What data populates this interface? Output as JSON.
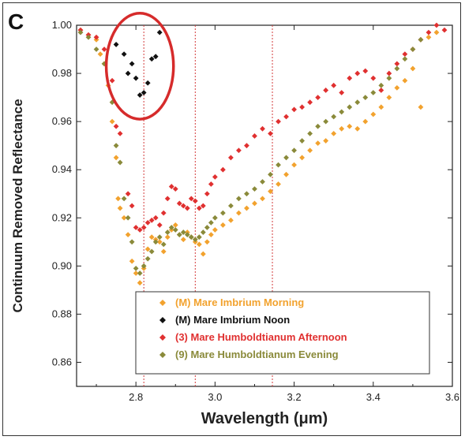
{
  "panel_label": "C",
  "chart_data": {
    "type": "scatter",
    "xlabel": "Wavelength (μm)",
    "ylabel": "Continuum Removed Reflectance",
    "xlim": [
      2.65,
      3.6
    ],
    "ylim": [
      0.85,
      1.0
    ],
    "xticks": [
      {
        "value": 2.8,
        "label": "2.8"
      },
      {
        "value": 3.0,
        "label": "3.0"
      },
      {
        "value": 3.2,
        "label": "3.2"
      },
      {
        "value": 3.4,
        "label": "3.4"
      },
      {
        "value": 3.6,
        "label": "3.6"
      }
    ],
    "yticks": [
      {
        "value": 0.86,
        "label": "0.86"
      },
      {
        "value": 0.88,
        "label": "0.88"
      },
      {
        "value": 0.9,
        "label": "0.90"
      },
      {
        "value": 0.92,
        "label": "0.92"
      },
      {
        "value": 0.94,
        "label": "0.94"
      },
      {
        "value": 0.96,
        "label": "0.96"
      },
      {
        "value": 0.98,
        "label": "0.98"
      },
      {
        "value": 1.0,
        "label": "1.00"
      }
    ],
    "reference_lines_x": [
      2.82,
      2.95,
      3.145
    ],
    "reference_line_color": "#d33b3b",
    "highlight_ellipse": {
      "x_center": 2.81,
      "y_center": 0.983,
      "x_radius": 0.085,
      "y_radius": 0.022,
      "color": "#d62b2b"
    },
    "legend_position": "bottom-center",
    "series": [
      {
        "name": "(M) Mare Imbrium Morning",
        "color": "#f2a22e",
        "x": [
          2.66,
          2.68,
          2.7,
          2.71,
          2.72,
          2.73,
          2.74,
          2.75,
          2.755,
          2.76,
          2.77,
          2.78,
          2.79,
          2.8,
          2.81,
          2.82,
          2.83,
          2.84,
          2.85,
          2.86,
          2.87,
          2.88,
          2.89,
          2.9,
          2.91,
          2.92,
          2.93,
          2.94,
          2.95,
          2.96,
          2.97,
          2.98,
          2.99,
          3.0,
          3.02,
          3.04,
          3.06,
          3.08,
          3.1,
          3.12,
          3.14,
          3.16,
          3.18,
          3.2,
          3.22,
          3.24,
          3.26,
          3.28,
          3.3,
          3.32,
          3.34,
          3.36,
          3.38,
          3.4,
          3.42,
          3.44,
          3.46,
          3.48,
          3.5,
          3.52,
          3.54,
          3.56
        ],
        "y": [
          0.998,
          0.996,
          0.994,
          0.988,
          0.984,
          0.975,
          0.96,
          0.945,
          0.928,
          0.924,
          0.92,
          0.913,
          0.902,
          0.897,
          0.893,
          0.899,
          0.907,
          0.912,
          0.911,
          0.91,
          0.906,
          0.912,
          0.915,
          0.917,
          0.913,
          0.911,
          0.914,
          0.912,
          0.91,
          0.909,
          0.905,
          0.91,
          0.913,
          0.915,
          0.917,
          0.919,
          0.922,
          0.924,
          0.926,
          0.928,
          0.931,
          0.934,
          0.938,
          0.942,
          0.945,
          0.948,
          0.951,
          0.952,
          0.955,
          0.957,
          0.958,
          0.957,
          0.96,
          0.963,
          0.966,
          0.97,
          0.974,
          0.977,
          0.982,
          0.966,
          0.995,
          0.997
        ]
      },
      {
        "name": "(M) Mare Imbrium Noon",
        "color": "#111111",
        "x": [
          2.75,
          2.77,
          2.78,
          2.79,
          2.8,
          2.81,
          2.82,
          2.83,
          2.84,
          2.85,
          2.86
        ],
        "y": [
          0.992,
          0.988,
          0.98,
          0.984,
          0.978,
          0.971,
          0.972,
          0.976,
          0.986,
          0.987,
          0.997
        ]
      },
      {
        "name": "(3) Mare Humboldtianum Afternoon",
        "color": "#e03030",
        "x": [
          2.66,
          2.68,
          2.7,
          2.72,
          2.74,
          2.75,
          2.76,
          2.78,
          2.79,
          2.8,
          2.81,
          2.82,
          2.83,
          2.84,
          2.85,
          2.86,
          2.87,
          2.88,
          2.89,
          2.9,
          2.91,
          2.92,
          2.93,
          2.94,
          2.95,
          2.96,
          2.97,
          2.98,
          2.99,
          3.0,
          3.02,
          3.04,
          3.06,
          3.08,
          3.1,
          3.12,
          3.14,
          3.16,
          3.18,
          3.2,
          3.22,
          3.24,
          3.26,
          3.28,
          3.3,
          3.32,
          3.34,
          3.36,
          3.38,
          3.4,
          3.42,
          3.44,
          3.46,
          3.48,
          3.5,
          3.52,
          3.54,
          3.56,
          3.58
        ],
        "y": [
          0.998,
          0.996,
          0.995,
          0.99,
          0.977,
          0.958,
          0.955,
          0.93,
          0.925,
          0.916,
          0.915,
          0.916,
          0.918,
          0.919,
          0.92,
          0.917,
          0.922,
          0.928,
          0.933,
          0.932,
          0.926,
          0.925,
          0.924,
          0.928,
          0.927,
          0.924,
          0.925,
          0.93,
          0.934,
          0.937,
          0.94,
          0.945,
          0.948,
          0.95,
          0.954,
          0.957,
          0.955,
          0.96,
          0.962,
          0.965,
          0.966,
          0.968,
          0.97,
          0.973,
          0.975,
          0.972,
          0.978,
          0.98,
          0.981,
          0.978,
          0.973,
          0.98,
          0.984,
          0.988,
          0.99,
          0.994,
          0.997,
          1.0,
          0.998
        ]
      },
      {
        "name": "(9) Mare Humboldtianum Evening",
        "color": "#8a8a3a",
        "x": [
          2.66,
          2.68,
          2.7,
          2.72,
          2.74,
          2.75,
          2.76,
          2.77,
          2.78,
          2.79,
          2.8,
          2.81,
          2.82,
          2.83,
          2.84,
          2.85,
          2.86,
          2.87,
          2.88,
          2.89,
          2.9,
          2.91,
          2.92,
          2.93,
          2.94,
          2.95,
          2.96,
          2.97,
          2.98,
          2.99,
          3.0,
          3.02,
          3.04,
          3.06,
          3.08,
          3.1,
          3.12,
          3.14,
          3.16,
          3.18,
          3.2,
          3.22,
          3.24,
          3.26,
          3.28,
          3.3,
          3.32,
          3.34,
          3.36,
          3.38,
          3.4,
          3.42,
          3.44,
          3.46,
          3.48,
          3.5,
          3.52
        ],
        "y": [
          0.997,
          0.995,
          0.99,
          0.984,
          0.968,
          0.95,
          0.943,
          0.928,
          0.92,
          0.91,
          0.899,
          0.897,
          0.9,
          0.903,
          0.906,
          0.91,
          0.912,
          0.909,
          0.914,
          0.916,
          0.915,
          0.913,
          0.914,
          0.913,
          0.912,
          0.911,
          0.912,
          0.914,
          0.916,
          0.918,
          0.92,
          0.922,
          0.925,
          0.928,
          0.93,
          0.932,
          0.935,
          0.938,
          0.942,
          0.945,
          0.948,
          0.952,
          0.955,
          0.958,
          0.96,
          0.962,
          0.964,
          0.966,
          0.968,
          0.97,
          0.972,
          0.975,
          0.978,
          0.982,
          0.986,
          0.99,
          0.994
        ]
      }
    ]
  }
}
